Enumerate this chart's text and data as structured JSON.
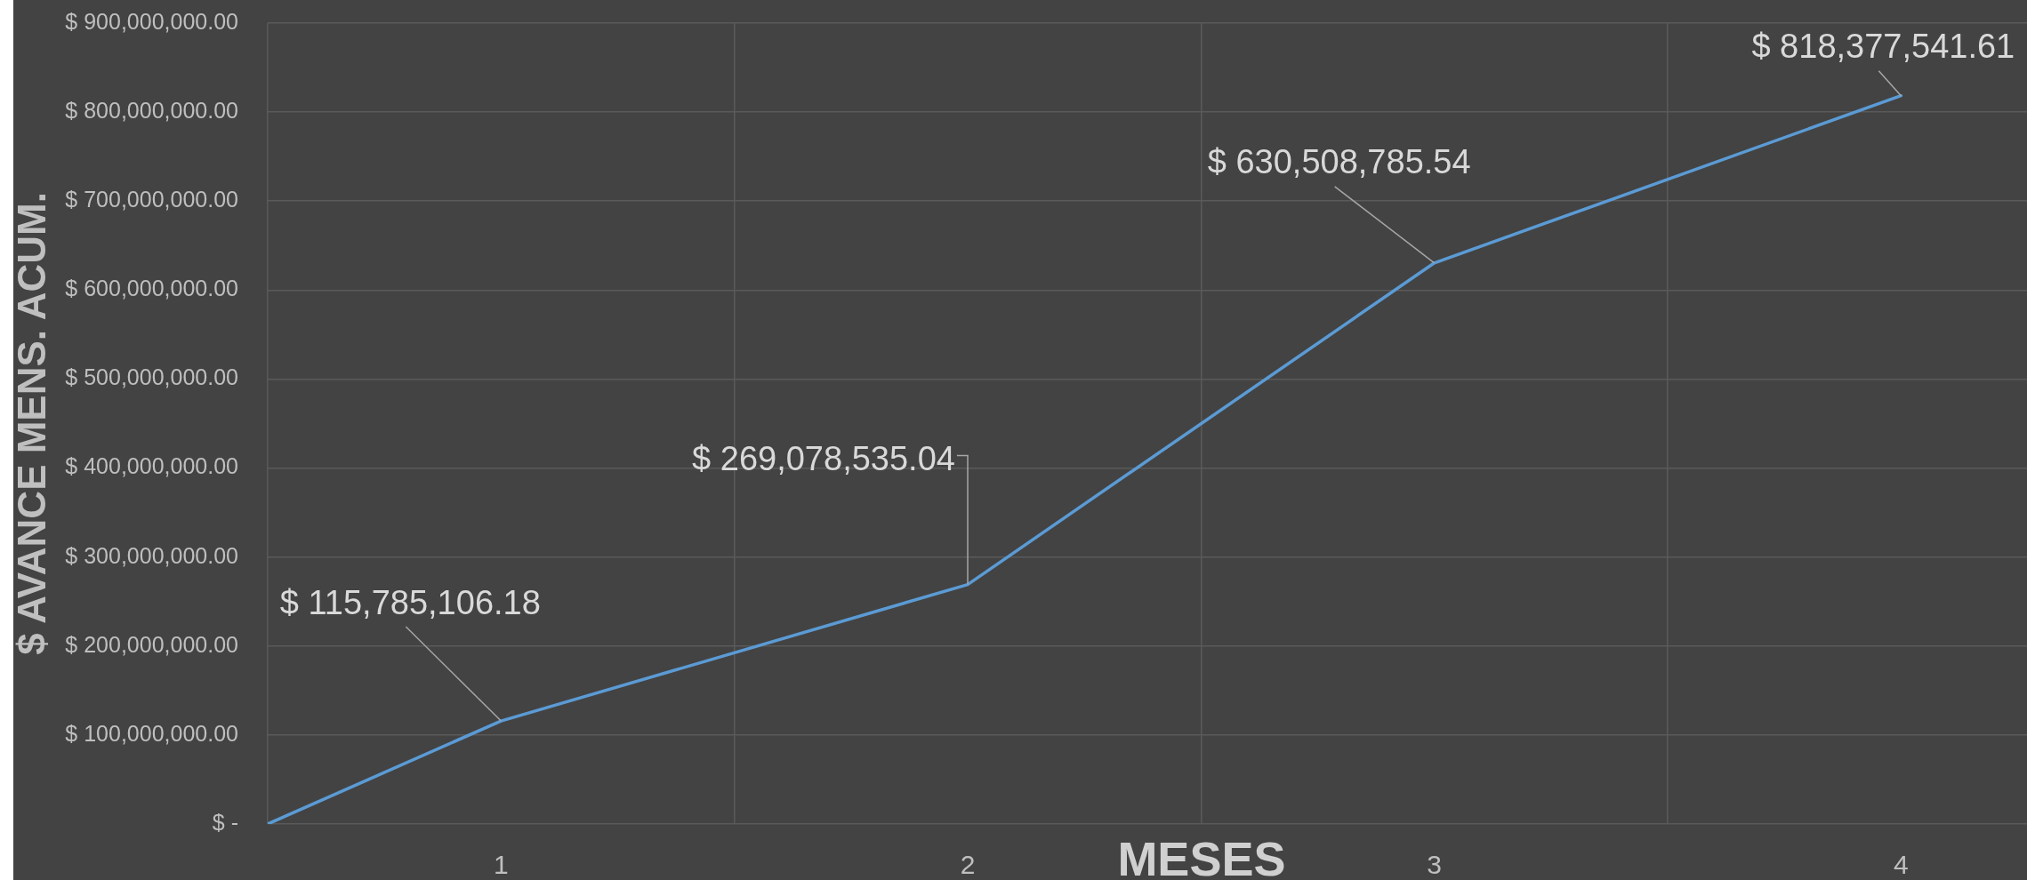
{
  "chart_data": {
    "type": "line",
    "xlabel": "MESES",
    "ylabel": "$ AVANCE MENS. ACUM.",
    "x": [
      0.5,
      1,
      2,
      3,
      4
    ],
    "values": [
      0,
      115785106.18,
      269078535.04,
      630508785.54,
      818377541.61
    ],
    "color": "#5b9bd5",
    "value_labels": [
      null,
      "$ 115,785,106.18",
      "$ 269,078,535.04",
      "$ 630,508,785.54",
      "$ 818,377,541.61"
    ],
    "xlim": [
      0.5,
      4.27
    ],
    "xticks": [
      {
        "value": 0.5,
        "label": null
      },
      1,
      {
        "value": 1.5,
        "label": null
      },
      2,
      {
        "value": 2.5,
        "label": null
      },
      3,
      {
        "value": 3.5,
        "label": null
      },
      4
    ],
    "ylim": [
      0,
      900000000
    ],
    "yticks": [
      {
        "value": 0,
        "label": "$ -"
      },
      {
        "value": 100000000,
        "label": "$ 100,000,000.00"
      },
      {
        "value": 200000000,
        "label": "$ 200,000,000.00"
      },
      {
        "value": 300000000,
        "label": "$ 300,000,000.00"
      },
      {
        "value": 400000000,
        "label": "$ 400,000,000.00"
      },
      {
        "value": 500000000,
        "label": "$ 500,000,000.00"
      },
      {
        "value": 600000000,
        "label": "$ 600,000,000.00"
      },
      {
        "value": 700000000,
        "label": "$ 700,000,000.00"
      },
      {
        "value": 800000000,
        "label": "$ 800,000,000.00"
      },
      {
        "value": 900000000,
        "label": "$ 900,000,000.00"
      }
    ],
    "grid": true,
    "marker": "none"
  }
}
